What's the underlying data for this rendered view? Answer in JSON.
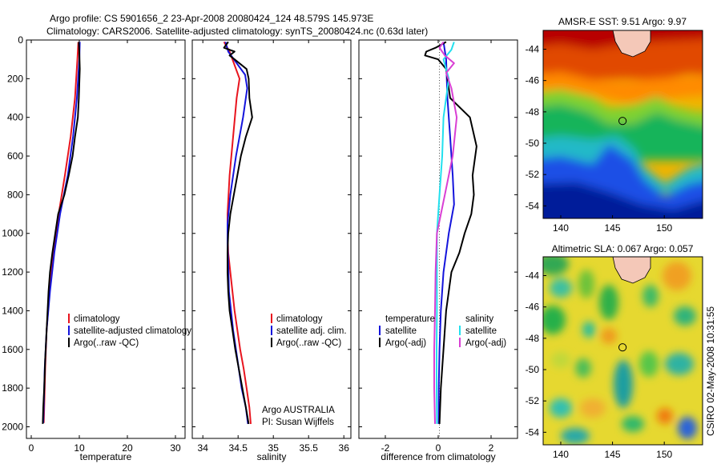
{
  "header": {
    "line1": "Argo profile: CS 5901656_2 23-Apr-2008 20080424_124 48.579S 145.973E",
    "line2": "Climatology: CARS2006. Satellite-adjusted climatology: synTS_20080424.nc (0.63d later)"
  },
  "side_stamp": "CSIRO 02-May-2008 10:31:55",
  "panel_notes": {
    "line1": "Argo AUSTRALIA",
    "line2": "PI: Susan Wijffels"
  },
  "colors": {
    "climatology": "#e8141e",
    "satellite": "#1414dc",
    "argo": "#000000",
    "salinity_satellite": "#22e0ee",
    "salinity_argo": "#d93fd4"
  },
  "chart_data": [
    {
      "type": "line",
      "xlabel": "temperature",
      "xlim": [
        -1,
        32
      ],
      "xticks": [
        0,
        10,
        20,
        30
      ],
      "ylim": [
        2060,
        0
      ],
      "yticks": [
        0,
        200,
        400,
        600,
        800,
        1000,
        1200,
        1400,
        1600,
        1800,
        2000
      ],
      "legend": [
        "climatology",
        "satellite-adjusted climatology",
        "Argo(..raw -QC)"
      ],
      "series": [
        {
          "name": "climatology",
          "color": "climatology",
          "points": [
            [
              9.8,
              10
            ],
            [
              9.6,
              100
            ],
            [
              9.1,
              300
            ],
            [
              8.2,
              500
            ],
            [
              7.0,
              700
            ],
            [
              5.7,
              900
            ],
            [
              4.6,
              1100
            ],
            [
              3.8,
              1300
            ],
            [
              3.2,
              1500
            ],
            [
              2.9,
              1700
            ],
            [
              2.7,
              1900
            ],
            [
              2.6,
              1980
            ]
          ]
        },
        {
          "name": "satellite-adjusted climatology",
          "color": "satellite",
          "points": [
            [
              10.1,
              10
            ],
            [
              10.0,
              100
            ],
            [
              9.5,
              300
            ],
            [
              8.7,
              500
            ],
            [
              7.6,
              700
            ],
            [
              6.0,
              900
            ],
            [
              4.8,
              1100
            ],
            [
              3.9,
              1300
            ],
            [
              3.2,
              1500
            ],
            [
              2.8,
              1700
            ],
            [
              2.6,
              1900
            ],
            [
              2.5,
              1980
            ]
          ]
        },
        {
          "name": "Argo(..raw -QC)",
          "color": "argo",
          "points": [
            [
              9.9,
              10
            ],
            [
              10.0,
              60
            ],
            [
              10.1,
              150
            ],
            [
              9.9,
              300
            ],
            [
              9.7,
              400
            ],
            [
              9.1,
              500
            ],
            [
              8.6,
              600
            ],
            [
              7.8,
              700
            ],
            [
              6.9,
              800
            ],
            [
              5.6,
              900
            ],
            [
              5.0,
              1000
            ],
            [
              4.4,
              1100
            ],
            [
              3.9,
              1200
            ],
            [
              3.6,
              1300
            ],
            [
              3.4,
              1400
            ],
            [
              3.2,
              1500
            ],
            [
              2.9,
              1650
            ],
            [
              2.7,
              1800
            ],
            [
              2.5,
              1900
            ],
            [
              2.4,
              1985
            ]
          ]
        }
      ]
    },
    {
      "type": "line",
      "xlabel": "salinity",
      "xlim": [
        33.85,
        36.1
      ],
      "xticks": [
        34,
        34.5,
        35,
        35.5,
        36
      ],
      "ylim": [
        2060,
        0
      ],
      "legend": [
        "climatology",
        "satellite adj. clim.",
        "Argo(..raw -QC)"
      ],
      "series": [
        {
          "name": "climatology",
          "color": "climatology",
          "points": [
            [
              34.3,
              10
            ],
            [
              34.38,
              60
            ],
            [
              34.52,
              200
            ],
            [
              34.48,
              300
            ],
            [
              34.43,
              500
            ],
            [
              34.38,
              700
            ],
            [
              34.35,
              900
            ],
            [
              34.35,
              1000
            ],
            [
              34.36,
              1100
            ],
            [
              34.39,
              1200
            ],
            [
              34.45,
              1400
            ],
            [
              34.53,
              1600
            ],
            [
              34.58,
              1700
            ],
            [
              34.62,
              1800
            ],
            [
              34.66,
              1900
            ],
            [
              34.68,
              1985
            ]
          ]
        },
        {
          "name": "satellite adj. clim.",
          "color": "satellite",
          "points": [
            [
              34.32,
              10
            ],
            [
              34.36,
              60
            ],
            [
              34.6,
              180
            ],
            [
              34.63,
              250
            ],
            [
              34.57,
              400
            ],
            [
              34.47,
              600
            ],
            [
              34.39,
              800
            ],
            [
              34.35,
              950
            ],
            [
              34.35,
              1050
            ],
            [
              34.36,
              1150
            ],
            [
              34.37,
              1300
            ],
            [
              34.43,
              1500
            ],
            [
              34.49,
              1650
            ],
            [
              34.55,
              1800
            ],
            [
              34.61,
              1900
            ],
            [
              34.64,
              1985
            ]
          ]
        },
        {
          "name": "Argo(..raw -QC)",
          "color": "argo",
          "points": [
            [
              34.36,
              10
            ],
            [
              34.3,
              40
            ],
            [
              34.45,
              60
            ],
            [
              34.38,
              80
            ],
            [
              34.45,
              100
            ],
            [
              34.62,
              150
            ],
            [
              34.65,
              200
            ],
            [
              34.66,
              300
            ],
            [
              34.7,
              400
            ],
            [
              34.61,
              500
            ],
            [
              34.54,
              600
            ],
            [
              34.49,
              700
            ],
            [
              34.44,
              800
            ],
            [
              34.39,
              900
            ],
            [
              34.36,
              1000
            ],
            [
              34.35,
              1100
            ],
            [
              34.35,
              1200
            ],
            [
              34.36,
              1300
            ],
            [
              34.38,
              1400
            ],
            [
              34.42,
              1500
            ],
            [
              34.46,
              1600
            ],
            [
              34.51,
              1700
            ],
            [
              34.56,
              1800
            ],
            [
              34.61,
              1900
            ],
            [
              34.65,
              1985
            ]
          ]
        }
      ]
    },
    {
      "type": "line",
      "xlabel": "difference from climatology",
      "xlim": [
        -3,
        3
      ],
      "xticks": [
        -2,
        0,
        2
      ],
      "ylim": [
        2060,
        0
      ],
      "legend_left_title": "temperature",
      "legend_right_title": "salinity",
      "legend": [
        "satellite",
        "Argo(-adj)",
        "satellite",
        "Argo(-adj)"
      ],
      "series": [
        {
          "name": "satellite",
          "group": "temperature",
          "color": "satellite",
          "points": [
            [
              0.2,
              10
            ],
            [
              0.3,
              100
            ],
            [
              0.35,
              300
            ],
            [
              0.45,
              500
            ],
            [
              0.55,
              700
            ],
            [
              0.6,
              850
            ],
            [
              0.4,
              1000
            ],
            [
              0.2,
              1200
            ],
            [
              0.1,
              1400
            ],
            [
              0.05,
              1600
            ],
            [
              0.02,
              1800
            ],
            [
              0.02,
              1985
            ]
          ]
        },
        {
          "name": "Argo(-adj)",
          "group": "temperature",
          "color": "argo",
          "points": [
            [
              0.3,
              10
            ],
            [
              -0.1,
              40
            ],
            [
              -0.45,
              60
            ],
            [
              -0.5,
              80
            ],
            [
              0.0,
              100
            ],
            [
              0.3,
              150
            ],
            [
              0.45,
              300
            ],
            [
              1.2,
              400
            ],
            [
              1.45,
              550
            ],
            [
              1.3,
              700
            ],
            [
              1.35,
              800
            ],
            [
              1.25,
              900
            ],
            [
              1.0,
              1000
            ],
            [
              0.8,
              1100
            ],
            [
              0.5,
              1200
            ],
            [
              0.4,
              1300
            ],
            [
              0.3,
              1400
            ],
            [
              0.2,
              1600
            ],
            [
              0.1,
              1800
            ],
            [
              0.05,
              1985
            ]
          ]
        },
        {
          "name": "satellite",
          "group": "salinity",
          "color": "salinity_satellite",
          "points": [
            [
              0.6,
              10
            ],
            [
              0.5,
              50
            ],
            [
              0.2,
              100
            ],
            [
              0.4,
              200
            ],
            [
              0.2,
              400
            ],
            [
              0.15,
              600
            ],
            [
              0.05,
              800
            ],
            [
              -0.05,
              1000
            ],
            [
              -0.05,
              1200
            ],
            [
              -0.05,
              1400
            ],
            [
              -0.06,
              1600
            ],
            [
              -0.06,
              1800
            ],
            [
              -0.05,
              1985
            ]
          ]
        },
        {
          "name": "Argo(-adj)",
          "group": "salinity",
          "color": "salinity_argo",
          "points": [
            [
              0.2,
              10
            ],
            [
              0.05,
              40
            ],
            [
              0.25,
              80
            ],
            [
              0.6,
              120
            ],
            [
              0.3,
              170
            ],
            [
              0.5,
              250
            ],
            [
              0.7,
              400
            ],
            [
              0.55,
              600
            ],
            [
              0.25,
              800
            ],
            [
              -0.05,
              1000
            ],
            [
              -0.1,
              1200
            ],
            [
              -0.12,
              1400
            ],
            [
              -0.15,
              1600
            ],
            [
              -0.15,
              1800
            ],
            [
              -0.12,
              1985
            ]
          ]
        }
      ]
    },
    {
      "type": "heatmap",
      "title": "AMSR-E SST: 9.51 Argo: 9.97",
      "xlim": [
        138.3,
        153.7
      ],
      "ylim": [
        -54.8,
        -42.8
      ],
      "xticks": [
        140,
        145,
        150
      ],
      "yticks": [
        -44,
        -46,
        -48,
        -50,
        -52,
        -54
      ],
      "marker": [
        145.97,
        -48.58
      ]
    },
    {
      "type": "heatmap",
      "title": "Altimetric SLA: 0.067 Argo: 0.057",
      "xlim": [
        138.3,
        153.7
      ],
      "ylim": [
        -54.8,
        -42.8
      ],
      "xticks": [
        140,
        145,
        150
      ],
      "yticks": [
        -44,
        -46,
        -48,
        -50,
        -52,
        -54
      ],
      "marker": [
        145.97,
        -48.58
      ]
    }
  ]
}
